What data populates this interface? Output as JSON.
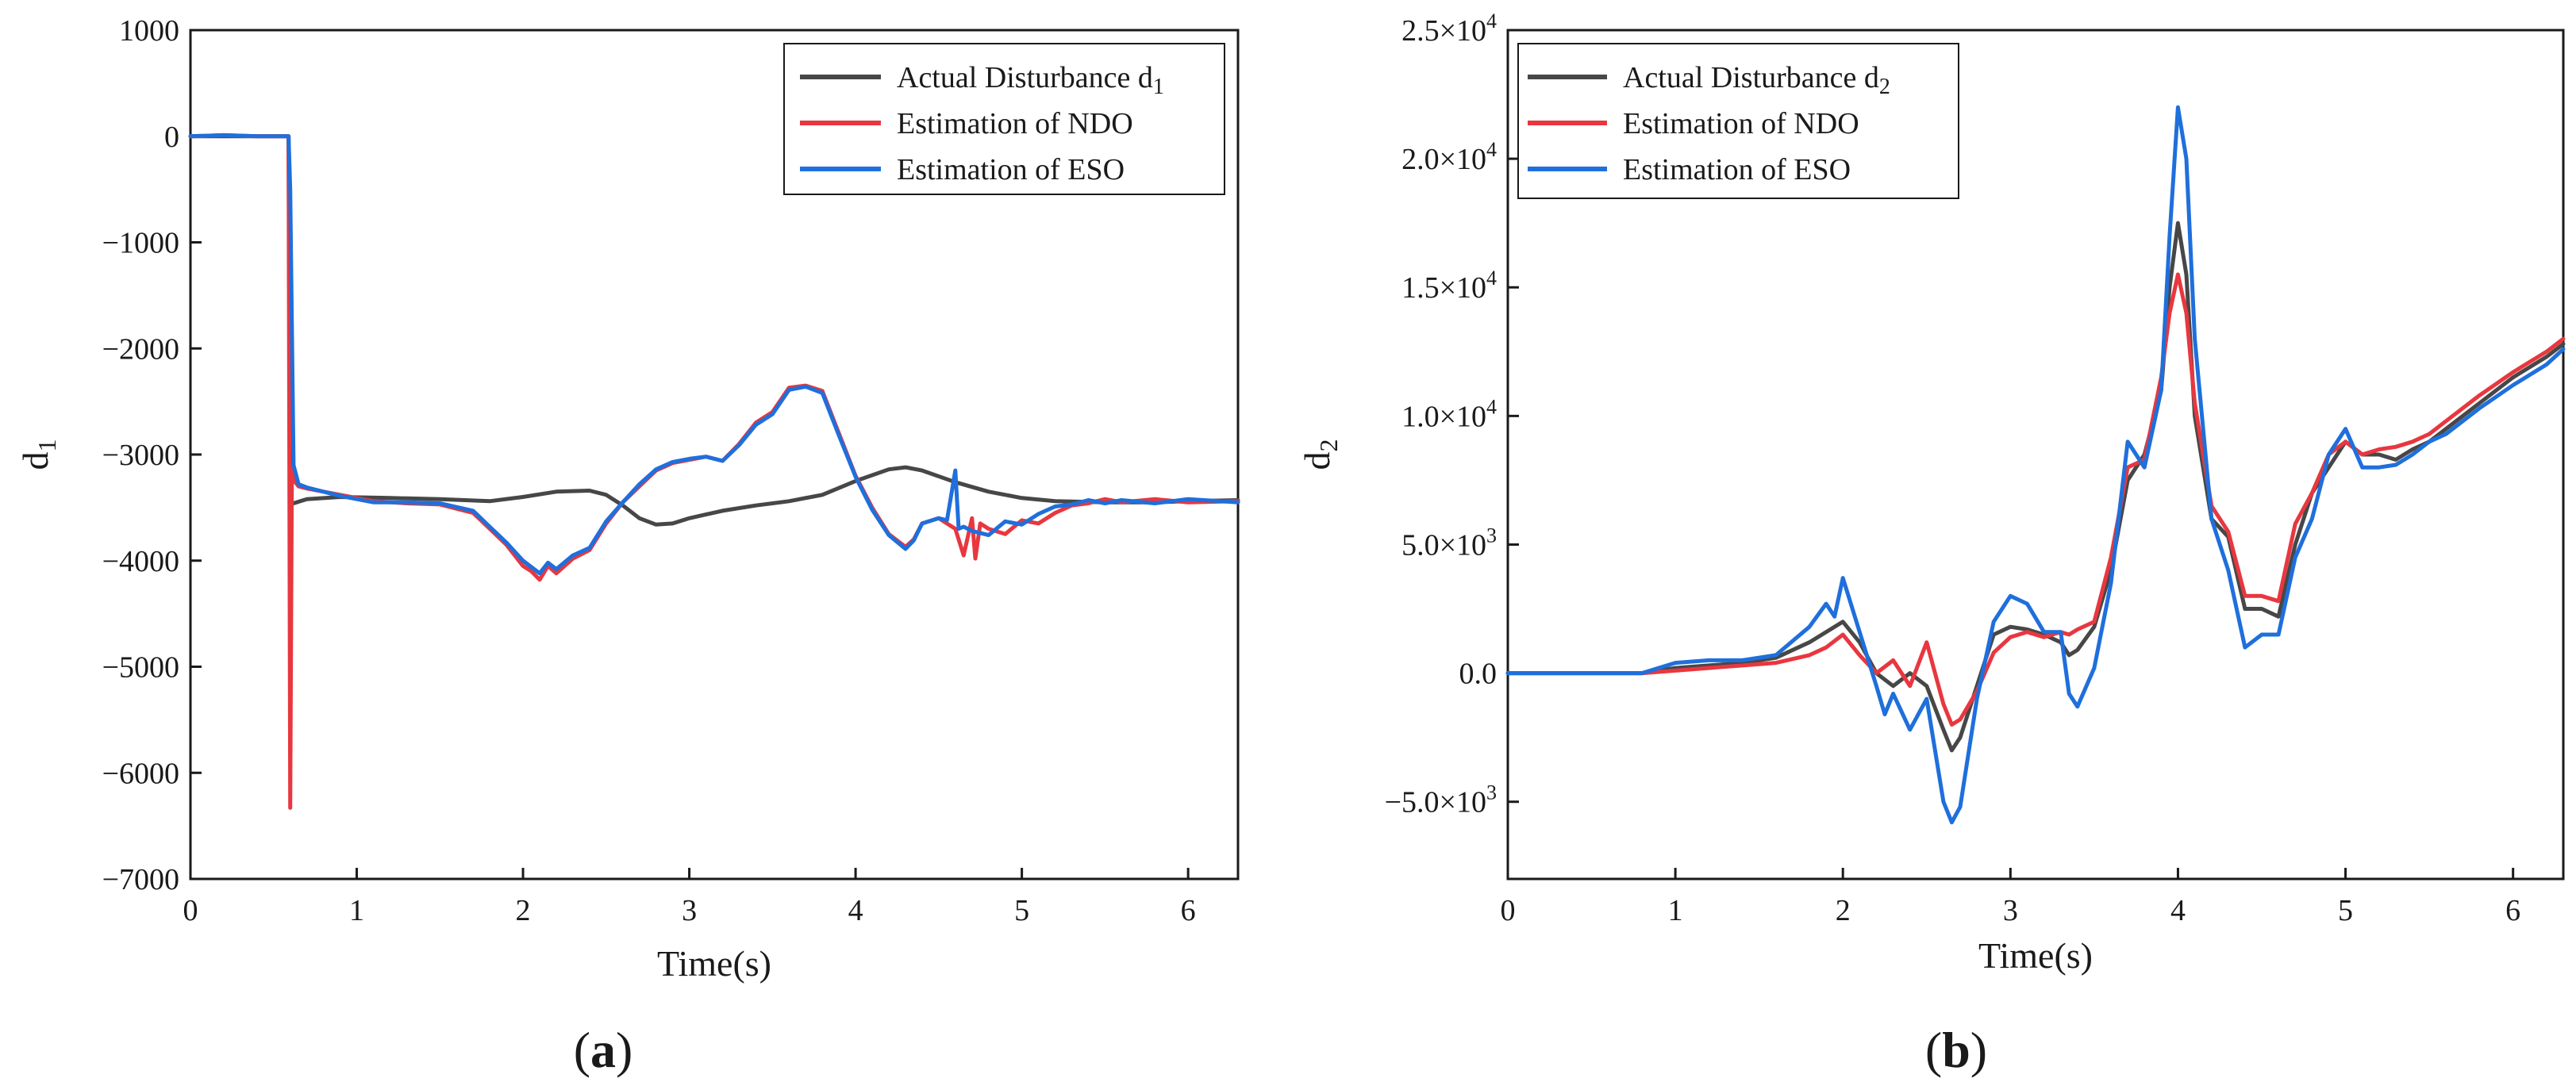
{
  "colors": {
    "actual": "#474747",
    "ndo": "#e8373f",
    "eso": "#1f6fdc",
    "axis": "#1a1a1a"
  },
  "panel_labels": [
    {
      "open": "(",
      "letter": "a",
      "close": ")"
    },
    {
      "open": "(",
      "letter": "b",
      "close": ")"
    }
  ],
  "chart_data": [
    {
      "type": "line",
      "title": "",
      "xlabel": "Time(s)",
      "ylabel": "d",
      "ylabel_sub": "1",
      "xlim": [
        0,
        6.3
      ],
      "ylim": [
        -7000,
        1000
      ],
      "x_ticks": [
        0,
        1,
        2,
        3,
        4,
        5,
        6
      ],
      "x_tick_labels": [
        "0",
        "1",
        "2",
        "3",
        "4",
        "5",
        "6"
      ],
      "y_ticks": [
        -7000,
        -6000,
        -5000,
        -4000,
        -3000,
        -2000,
        -1000,
        0,
        1000
      ],
      "y_tick_labels": [
        "−7000",
        "−6000",
        "−5000",
        "−4000",
        "−3000",
        "−2000",
        "−1000",
        "0",
        "1000"
      ],
      "legend_position": "top-right",
      "series": [
        {
          "name": "Actual Disturbance d",
          "name_sub": "1",
          "color_key": "actual",
          "x": [
            0,
            0.59,
            0.6,
            0.62,
            0.7,
            0.9,
            1.2,
            1.5,
            1.8,
            2.0,
            2.2,
            2.4,
            2.5,
            2.6,
            2.7,
            2.8,
            2.9,
            3.0,
            3.2,
            3.4,
            3.6,
            3.8,
            4.0,
            4.2,
            4.3,
            4.4,
            4.6,
            4.8,
            5.0,
            5.2,
            5.5,
            5.8,
            6.0,
            6.3
          ],
          "y": [
            0,
            0,
            -3450,
            -3460,
            -3420,
            -3400,
            -3410,
            -3420,
            -3440,
            -3400,
            -3350,
            -3340,
            -3380,
            -3480,
            -3600,
            -3660,
            -3650,
            -3600,
            -3530,
            -3480,
            -3440,
            -3380,
            -3250,
            -3140,
            -3120,
            -3150,
            -3260,
            -3350,
            -3410,
            -3440,
            -3450,
            -3450,
            -3440,
            -3430
          ]
        },
        {
          "name": "Estimation of NDO",
          "color_key": "ndo",
          "x": [
            0,
            0.2,
            0.4,
            0.59,
            0.6,
            0.61,
            0.63,
            0.65,
            0.7,
            0.9,
            1.1,
            1.3,
            1.5,
            1.7,
            1.8,
            1.9,
            2.0,
            2.05,
            2.1,
            2.15,
            2.2,
            2.3,
            2.4,
            2.5,
            2.6,
            2.7,
            2.8,
            2.9,
            3.0,
            3.1,
            3.2,
            3.3,
            3.4,
            3.5,
            3.6,
            3.7,
            3.8,
            3.9,
            4.0,
            4.1,
            4.2,
            4.3,
            4.35,
            4.4,
            4.5,
            4.6,
            4.65,
            4.7,
            4.72,
            4.75,
            4.8,
            4.9,
            5.0,
            5.1,
            5.2,
            5.3,
            5.4,
            5.5,
            5.6,
            5.8,
            6.0,
            6.3
          ],
          "y": [
            0,
            10,
            0,
            0,
            -6330,
            -3100,
            -3260,
            -3300,
            -3320,
            -3380,
            -3440,
            -3460,
            -3470,
            -3550,
            -3700,
            -3850,
            -4050,
            -4100,
            -4180,
            -4050,
            -4120,
            -3980,
            -3900,
            -3650,
            -3450,
            -3300,
            -3150,
            -3080,
            -3050,
            -3020,
            -3060,
            -2900,
            -2700,
            -2600,
            -2370,
            -2350,
            -2400,
            -2800,
            -3200,
            -3500,
            -3750,
            -3870,
            -3800,
            -3650,
            -3600,
            -3700,
            -3950,
            -3600,
            -3980,
            -3650,
            -3700,
            -3750,
            -3620,
            -3650,
            -3550,
            -3480,
            -3460,
            -3420,
            -3450,
            -3420,
            -3450,
            -3440
          ]
        },
        {
          "name": "Estimation of ESO",
          "color_key": "eso",
          "x": [
            0,
            0.2,
            0.4,
            0.59,
            0.6,
            0.62,
            0.65,
            0.7,
            0.9,
            1.1,
            1.3,
            1.5,
            1.7,
            1.8,
            1.9,
            2.0,
            2.05,
            2.1,
            2.15,
            2.2,
            2.3,
            2.4,
            2.5,
            2.6,
            2.7,
            2.8,
            2.9,
            3.0,
            3.1,
            3.2,
            3.3,
            3.4,
            3.5,
            3.6,
            3.7,
            3.8,
            3.9,
            4.0,
            4.1,
            4.2,
            4.3,
            4.35,
            4.4,
            4.5,
            4.55,
            4.6,
            4.62,
            4.65,
            4.7,
            4.8,
            4.9,
            5.0,
            5.1,
            5.2,
            5.3,
            5.4,
            5.5,
            5.6,
            5.8,
            6.0,
            6.3
          ],
          "y": [
            0,
            10,
            0,
            0,
            -500,
            -3100,
            -3280,
            -3310,
            -3390,
            -3450,
            -3450,
            -3460,
            -3530,
            -3680,
            -3830,
            -4000,
            -4060,
            -4120,
            -4020,
            -4080,
            -3950,
            -3880,
            -3630,
            -3450,
            -3280,
            -3140,
            -3070,
            -3040,
            -3020,
            -3060,
            -2910,
            -2720,
            -2620,
            -2390,
            -2360,
            -2420,
            -2820,
            -3210,
            -3520,
            -3760,
            -3890,
            -3810,
            -3650,
            -3600,
            -3620,
            -3150,
            -3700,
            -3680,
            -3720,
            -3760,
            -3630,
            -3660,
            -3560,
            -3490,
            -3470,
            -3430,
            -3460,
            -3430,
            -3460,
            -3420,
            -3450
          ]
        }
      ]
    },
    {
      "type": "line",
      "title": "",
      "xlabel": "Time(s)",
      "ylabel": "d",
      "ylabel_sub": "2",
      "xlim": [
        0,
        6.3
      ],
      "ylim": [
        -8000,
        25000
      ],
      "x_ticks": [
        0,
        1,
        2,
        3,
        4,
        5,
        6
      ],
      "x_tick_labels": [
        "0",
        "1",
        "2",
        "3",
        "4",
        "5",
        "6"
      ],
      "y_ticks": [
        -5000,
        0,
        5000,
        10000,
        15000,
        20000,
        25000
      ],
      "y_tick_labels": [
        {
          "mantissa": "−5.0×10",
          "exp": "3"
        },
        {
          "mantissa": "0.0",
          "exp": ""
        },
        {
          "mantissa": "5.0×10",
          "exp": "3"
        },
        {
          "mantissa": "1.0×10",
          "exp": "4"
        },
        {
          "mantissa": "1.5×10",
          "exp": "4"
        },
        {
          "mantissa": "2.0×10",
          "exp": "4"
        },
        {
          "mantissa": "2.5×10",
          "exp": "4"
        }
      ],
      "legend_position": "top-left",
      "series": [
        {
          "name": "Actual  Disturbance  d",
          "name_sub": "2",
          "color_key": "actual",
          "x": [
            0,
            0.5,
            0.8,
            1.0,
            1.2,
            1.4,
            1.6,
            1.8,
            1.9,
            2.0,
            2.1,
            2.2,
            2.3,
            2.4,
            2.5,
            2.6,
            2.65,
            2.7,
            2.8,
            2.9,
            3.0,
            3.1,
            3.2,
            3.3,
            3.35,
            3.4,
            3.5,
            3.6,
            3.7,
            3.8,
            3.9,
            3.95,
            4.0,
            4.05,
            4.1,
            4.2,
            4.3,
            4.4,
            4.5,
            4.6,
            4.7,
            4.8,
            4.9,
            5.0,
            5.1,
            5.2,
            5.3,
            5.4,
            5.5,
            5.6,
            5.8,
            6.0,
            6.2,
            6.3
          ],
          "y": [
            0,
            0,
            0,
            200,
            300,
            400,
            600,
            1200,
            1600,
            2000,
            1200,
            0,
            -500,
            0,
            -500,
            -2200,
            -3000,
            -2500,
            -500,
            1500,
            1800,
            1700,
            1500,
            1200,
            700,
            900,
            1800,
            4000,
            7500,
            8500,
            11000,
            15000,
            17500,
            15500,
            10000,
            6000,
            5300,
            2500,
            2500,
            2200,
            5000,
            7000,
            8000,
            9000,
            8500,
            8500,
            8300,
            8700,
            9000,
            9500,
            10500,
            11500,
            12300,
            12800
          ]
        },
        {
          "name": "Estimation of NDO",
          "color_key": "ndo",
          "x": [
            0,
            0.5,
            0.8,
            1.0,
            1.2,
            1.4,
            1.6,
            1.8,
            1.9,
            2.0,
            2.1,
            2.2,
            2.3,
            2.4,
            2.5,
            2.6,
            2.65,
            2.7,
            2.8,
            2.9,
            3.0,
            3.1,
            3.2,
            3.3,
            3.35,
            3.4,
            3.5,
            3.6,
            3.7,
            3.8,
            3.9,
            3.95,
            4.0,
            4.05,
            4.1,
            4.2,
            4.3,
            4.4,
            4.5,
            4.6,
            4.7,
            4.8,
            4.9,
            5.0,
            5.1,
            5.2,
            5.3,
            5.4,
            5.5,
            5.6,
            5.8,
            6.0,
            6.2,
            6.3
          ],
          "y": [
            0,
            0,
            0,
            100,
            200,
            300,
            400,
            700,
            1000,
            1500,
            700,
            0,
            500,
            -500,
            1200,
            -1200,
            -2000,
            -1800,
            -700,
            800,
            1400,
            1600,
            1400,
            1600,
            1500,
            1700,
            2000,
            4500,
            8000,
            8300,
            11500,
            14000,
            15500,
            14000,
            10500,
            6500,
            5500,
            3000,
            3000,
            2800,
            5800,
            7000,
            8500,
            9000,
            8500,
            8700,
            8800,
            9000,
            9300,
            9800,
            10800,
            11700,
            12500,
            13000
          ]
        },
        {
          "name": "Estimation of ESO",
          "color_key": "eso",
          "x": [
            0,
            0.5,
            0.8,
            1.0,
            1.2,
            1.4,
            1.6,
            1.8,
            1.9,
            1.95,
            2.0,
            2.1,
            2.2,
            2.25,
            2.3,
            2.4,
            2.5,
            2.6,
            2.65,
            2.7,
            2.8,
            2.9,
            3.0,
            3.1,
            3.2,
            3.3,
            3.35,
            3.4,
            3.5,
            3.6,
            3.7,
            3.8,
            3.9,
            3.95,
            4.0,
            4.05,
            4.1,
            4.2,
            4.3,
            4.4,
            4.5,
            4.6,
            4.7,
            4.8,
            4.9,
            5.0,
            5.1,
            5.2,
            5.3,
            5.4,
            5.5,
            5.6,
            5.8,
            6.0,
            6.2,
            6.3
          ],
          "y": [
            0,
            0,
            0,
            400,
            500,
            500,
            700,
            1800,
            2700,
            2200,
            3700,
            1600,
            -500,
            -1600,
            -800,
            -2200,
            -1000,
            -5000,
            -5800,
            -5200,
            -1000,
            2000,
            3000,
            2700,
            1600,
            1600,
            -800,
            -1300,
            200,
            3500,
            9000,
            8000,
            11000,
            17000,
            22000,
            20000,
            13000,
            6000,
            4000,
            1000,
            1500,
            1500,
            4500,
            6000,
            8500,
            9500,
            8000,
            8000,
            8100,
            8500,
            9000,
            9300,
            10300,
            11200,
            12000,
            12600
          ]
        }
      ]
    }
  ]
}
